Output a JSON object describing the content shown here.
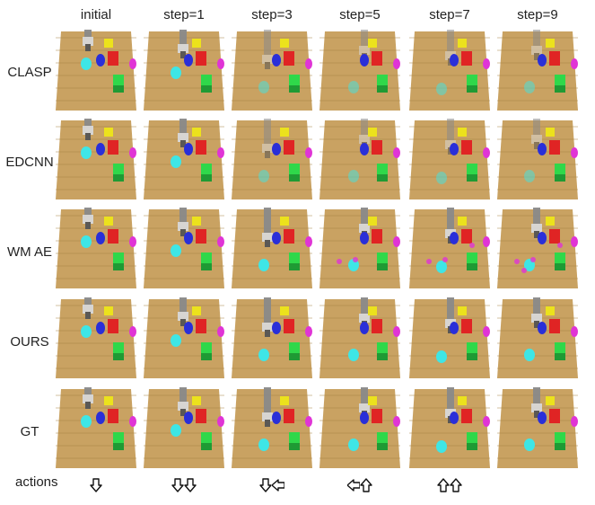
{
  "figure": {
    "column_headers": [
      "initial",
      "step=1",
      "step=3",
      "step=5",
      "step=7",
      "step=9"
    ],
    "row_labels": [
      "CLASP",
      "EDCNN",
      "WM AE",
      "OURS",
      "GT"
    ],
    "actions_label": "actions",
    "actions": [
      [
        "down"
      ],
      [
        "down",
        "down"
      ],
      [
        "down",
        "left"
      ],
      [
        "left",
        "up"
      ],
      [
        "up",
        "up"
      ],
      []
    ],
    "colors": {
      "table": "#c9a262",
      "table_dark": "#a98242",
      "robot_arm": "#8a8a8a",
      "cyan_cylinder": "#3ee6e6",
      "blue_object": "#2a2fd8",
      "red_cube": "#e02424",
      "yellow_cube": "#ece21c",
      "green_cube": "#2fd84a",
      "magenta_object": "#e034d6"
    }
  }
}
